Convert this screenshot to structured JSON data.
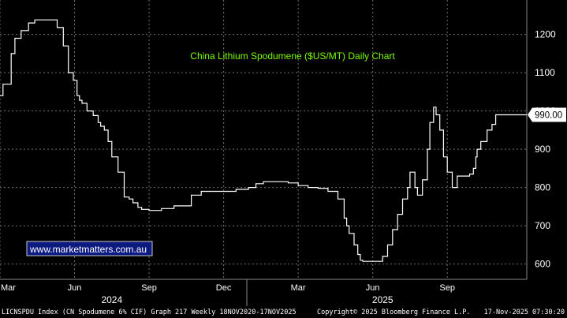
{
  "chart_data": {
    "type": "line",
    "title": "China Lithium Spodumene ($US/MT) Daily Chart",
    "ylim": [
      560,
      1290
    ],
    "yticks": [
      600,
      700,
      800,
      900,
      1000,
      1100,
      1200
    ],
    "xticks": [
      {
        "x": 0,
        "label": "Mar"
      },
      {
        "x": 3,
        "label": "Jun"
      },
      {
        "x": 6,
        "label": "Sep"
      },
      {
        "x": 9,
        "label": "Dec"
      },
      {
        "x": 12,
        "label": "Mar"
      },
      {
        "x": 15,
        "label": "Jun"
      },
      {
        "x": 18,
        "label": "Sep"
      }
    ],
    "years": [
      {
        "x": 4.5,
        "label": "2024"
      },
      {
        "x": 15.4,
        "label": "2025"
      }
    ],
    "xlim": [
      0,
      21.2
    ],
    "last_value_label": "990.00",
    "series": [
      {
        "color": "#ffffff",
        "x": [
          0,
          0.12,
          0.45,
          0.6,
          0.85,
          1.15,
          1.4,
          1.6,
          2.3,
          2.55,
          2.75,
          2.95,
          3.1,
          3.2,
          3.3,
          3.5,
          3.75,
          3.95,
          4.05,
          4.2,
          4.35,
          4.5,
          4.75,
          5.0,
          5.2,
          5.35,
          5.55,
          5.7,
          6.0,
          6.5,
          7.0,
          7.7,
          8.1,
          8.5,
          9.0,
          9.5,
          10.0,
          10.3,
          10.6,
          10.9,
          11.2,
          11.6,
          12.0,
          12.4,
          12.8,
          13.2,
          13.6,
          13.85,
          13.95,
          14.05,
          14.25,
          14.4,
          14.5,
          14.6,
          15.0,
          15.4,
          15.6,
          15.8,
          16.0,
          16.2,
          16.4,
          16.5,
          16.7,
          16.8,
          17.0,
          17.2,
          17.3,
          17.45,
          17.55,
          17.7,
          17.85,
          18.0,
          18.2,
          18.4,
          18.6,
          18.75,
          18.9,
          19.05,
          19.15,
          19.2,
          19.35,
          19.6,
          19.8,
          19.95,
          20.1,
          20.3,
          20.5,
          20.7,
          21.0,
          21.2
        ],
        "y": [
          1040,
          1070,
          1150,
          1190,
          1210,
          1230,
          1238,
          1238,
          1218,
          1170,
          1100,
          1080,
          1040,
          1028,
          1020,
          1000,
          988,
          970,
          960,
          950,
          920,
          880,
          840,
          775,
          770,
          760,
          748,
          743,
          740,
          745,
          752,
          780,
          790,
          790,
          790,
          795,
          800,
          810,
          815,
          815,
          815,
          812,
          805,
          800,
          798,
          790,
          770,
          720,
          700,
          680,
          650,
          625,
          610,
          607,
          607,
          620,
          650,
          690,
          730,
          770,
          800,
          840,
          800,
          780,
          820,
          900,
          970,
          1010,
          990,
          950,
          880,
          840,
          800,
          830,
          830,
          830,
          835,
          850,
          880,
          900,
          920,
          950,
          965,
          990,
          990,
          990,
          990,
          990,
          990,
          990
        ]
      }
    ]
  },
  "watermark": "www.marketmatters.com.au",
  "footer": {
    "left": "LICNSPDU Index (CN Spodumene 6% CIF) Graph 217 Weekly 18NOV2020-17NOV2025",
    "copyright": "Copyright© 2025 Bloomberg Finance L.P.",
    "timestamp": "17-Nov-2025 07:30:20"
  },
  "colors": {
    "background": "#000000",
    "line": "#ffffff",
    "title": "#7CFC00",
    "watermark_bg": "#0d1a80",
    "grid": "#6f6f6f"
  }
}
